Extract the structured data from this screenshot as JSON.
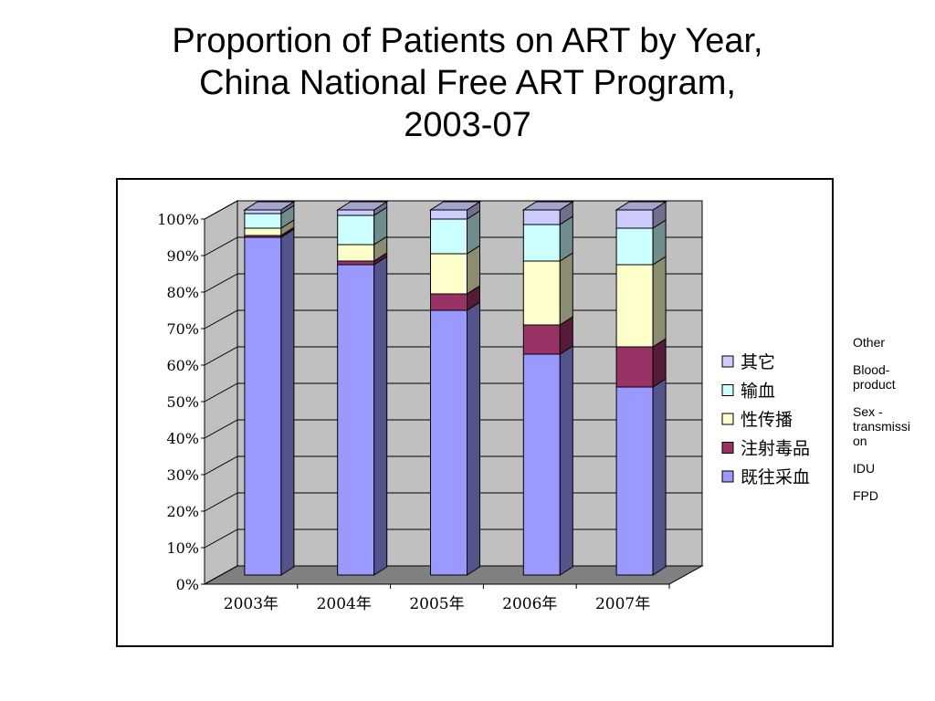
{
  "title_lines": [
    "Proportion of Patients on ART by Year,",
    "China National Free ART Program,",
    "2003-07"
  ],
  "english_legend": [
    "Other",
    "Blood-\nproduct",
    "Sex -\ntransmissi\non",
    "IDU",
    "FPD"
  ],
  "chart_data": {
    "type": "bar",
    "stacked": true,
    "three_d": true,
    "categories": [
      "2003年",
      "2004年",
      "2005年",
      "2006年",
      "2007年"
    ],
    "series": [
      {
        "name": "既往采血",
        "color": "#9999ff",
        "values": [
          92.5,
          85,
          72.5,
          60.5,
          51.5
        ]
      },
      {
        "name": "注射毒品",
        "color": "#993366",
        "values": [
          0.5,
          1,
          4.5,
          8,
          11
        ]
      },
      {
        "name": "性传播",
        "color": "#ffffcc",
        "values": [
          2,
          4.5,
          11,
          17.5,
          22.5
        ]
      },
      {
        "name": "输血",
        "color": "#ccffff",
        "values": [
          4,
          8,
          9.5,
          10,
          10
        ]
      },
      {
        "name": "其它",
        "color": "#ccccff",
        "values": [
          1,
          1.5,
          2.5,
          4,
          5
        ]
      }
    ],
    "ylim": [
      0,
      100
    ],
    "yticks": [
      "0%",
      "10%",
      "20%",
      "30%",
      "40%",
      "50%",
      "60%",
      "70%",
      "80%",
      "90%",
      "100%"
    ],
    "legend_order": [
      "其它",
      "输血",
      "性传播",
      "注射毒品",
      "既往采血"
    ],
    "legend_position": "right",
    "grid": true,
    "wall_color": "#c0c0c0",
    "floor_color": "#808080"
  }
}
